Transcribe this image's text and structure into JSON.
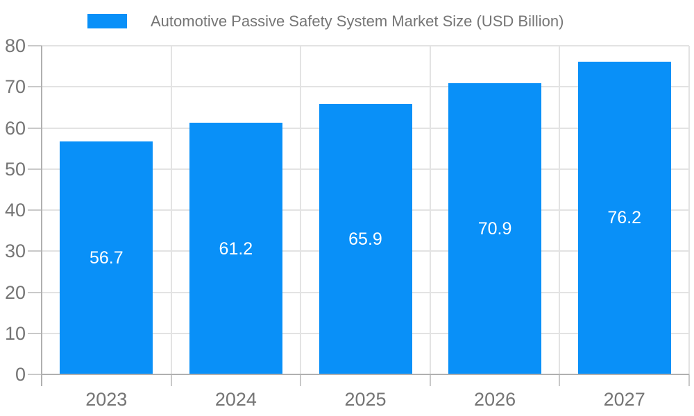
{
  "legend": {
    "label": "Automotive Passive Safety System Market Size (USD Billion)"
  },
  "chart_data": {
    "type": "bar",
    "title": "Automotive Passive Safety System Market Size (USD Billion)",
    "categories": [
      "2023",
      "2024",
      "2025",
      "2026",
      "2027"
    ],
    "values": [
      56.7,
      61.2,
      65.9,
      70.9,
      76.2
    ],
    "value_labels": [
      "56.7",
      "61.2",
      "65.9",
      "70.9",
      "76.2"
    ],
    "xlabel": "",
    "ylabel": "",
    "ylim": [
      0,
      80
    ],
    "yticks": [
      0,
      10,
      20,
      30,
      40,
      50,
      60,
      70,
      80
    ],
    "grid": true,
    "legend_position": "top",
    "value_labels_position": "inside-middle",
    "colors": {
      "bar": "#0990f8",
      "grid_line": "#e3e3e3",
      "tick_line": "#c9c9c9",
      "axis_line": "#b0b0b0",
      "axis_text": "#757575",
      "legend_text": "#757575",
      "value_text": "#ffffff",
      "background": "#ffffff"
    }
  }
}
